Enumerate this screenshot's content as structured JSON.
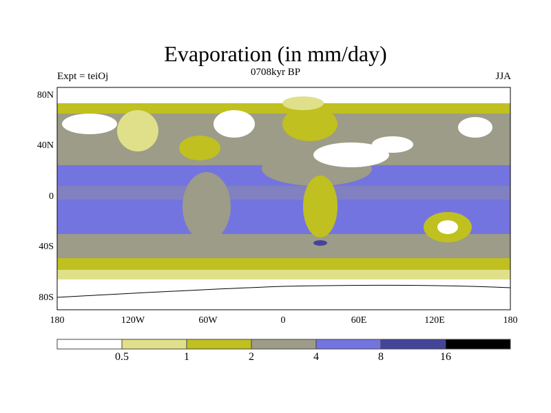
{
  "title": "Evaporation (in mm/day)",
  "subtitle": "0708kyr BP",
  "left_label": "Expt = teiOj",
  "right_label": "JJA",
  "chart_data": {
    "type": "heatmap",
    "title": "Evaporation (in mm/day)",
    "projection": "cylindrical equidistant",
    "lon_range": [
      -180,
      180
    ],
    "lat_range": [
      -90,
      90
    ],
    "y_ticks": [
      "80N",
      "40N",
      "0",
      "40S",
      "80S"
    ],
    "x_ticks": [
      "180",
      "120W",
      "60W",
      "0",
      "60E",
      "120E",
      "180"
    ],
    "colorbar": {
      "levels": [
        "0.5",
        "1",
        "2",
        "4",
        "8",
        "16"
      ],
      "colors": [
        "#ffffff",
        "#e0e08a",
        "#c0c020",
        "#9c9c88",
        "#7474e0",
        "#44449a",
        "#000000"
      ]
    }
  }
}
